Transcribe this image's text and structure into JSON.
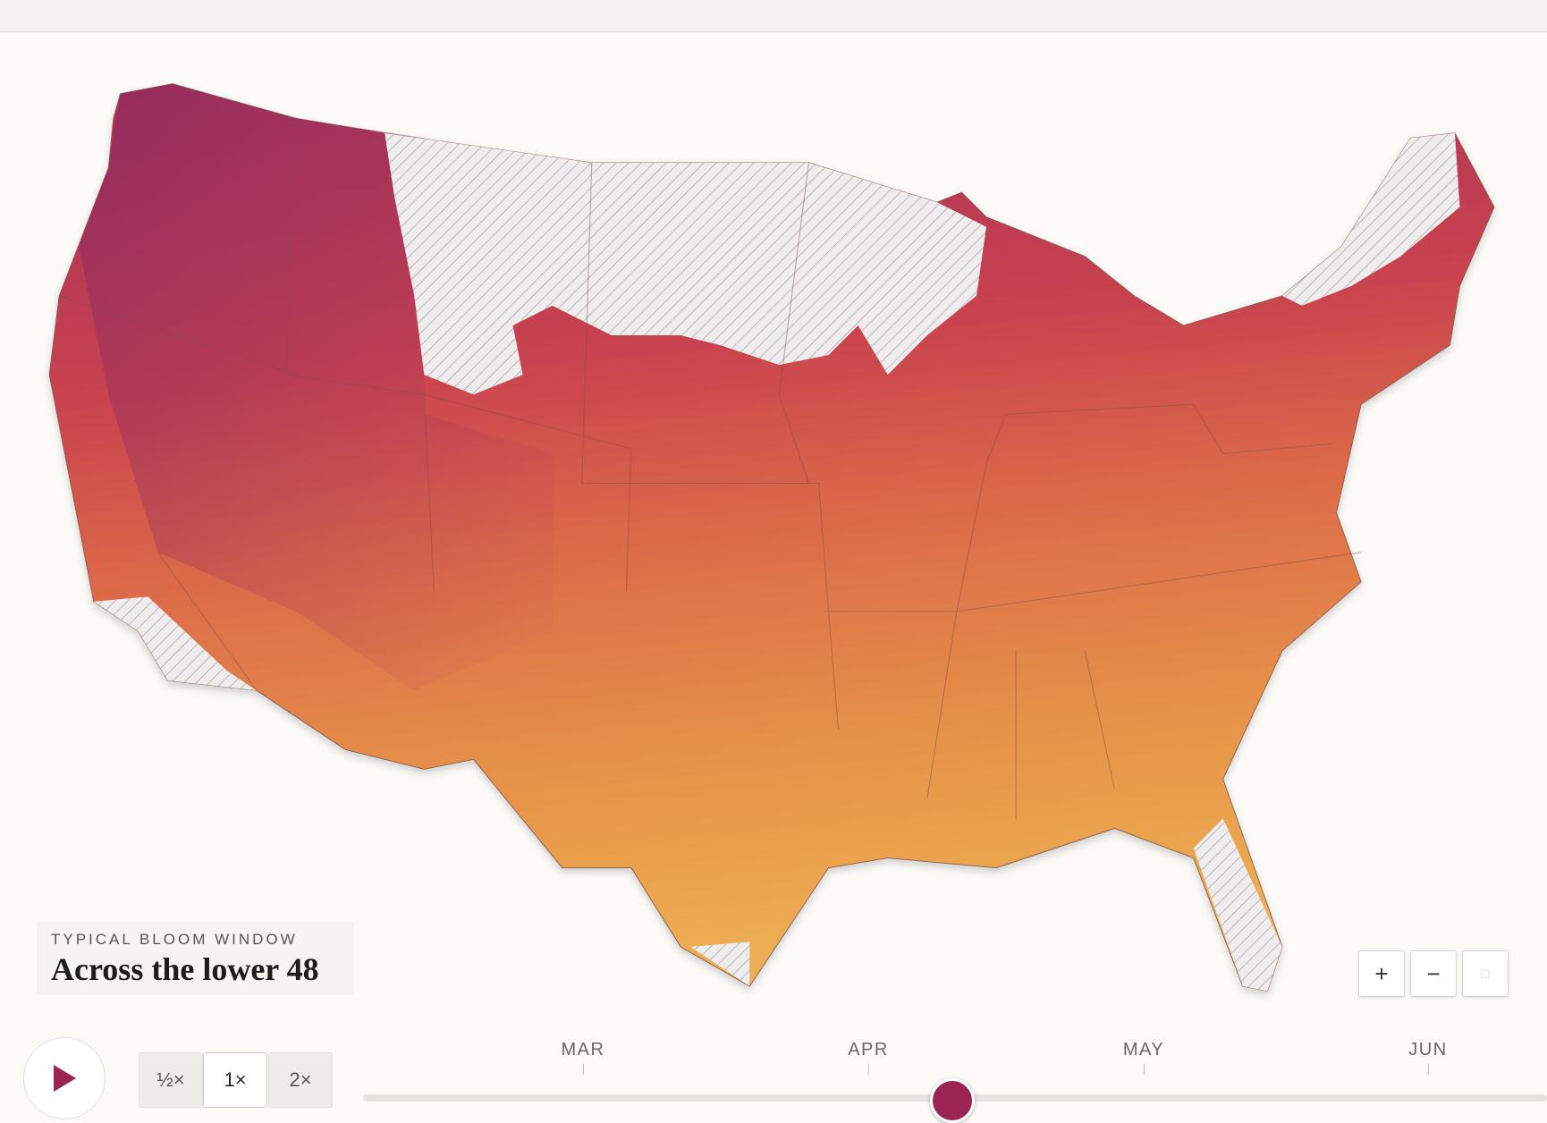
{
  "legend": {
    "eyebrow": "TYPICAL BLOOM WINDOW",
    "title": "Across the lower 48"
  },
  "zoom": [
    "+",
    "−"
  ],
  "speeds": [
    "½×",
    "1×",
    "2×"
  ],
  "timeline": {
    "months": [
      "MAR",
      "APR",
      "MAY",
      "JUN"
    ]
  }
}
